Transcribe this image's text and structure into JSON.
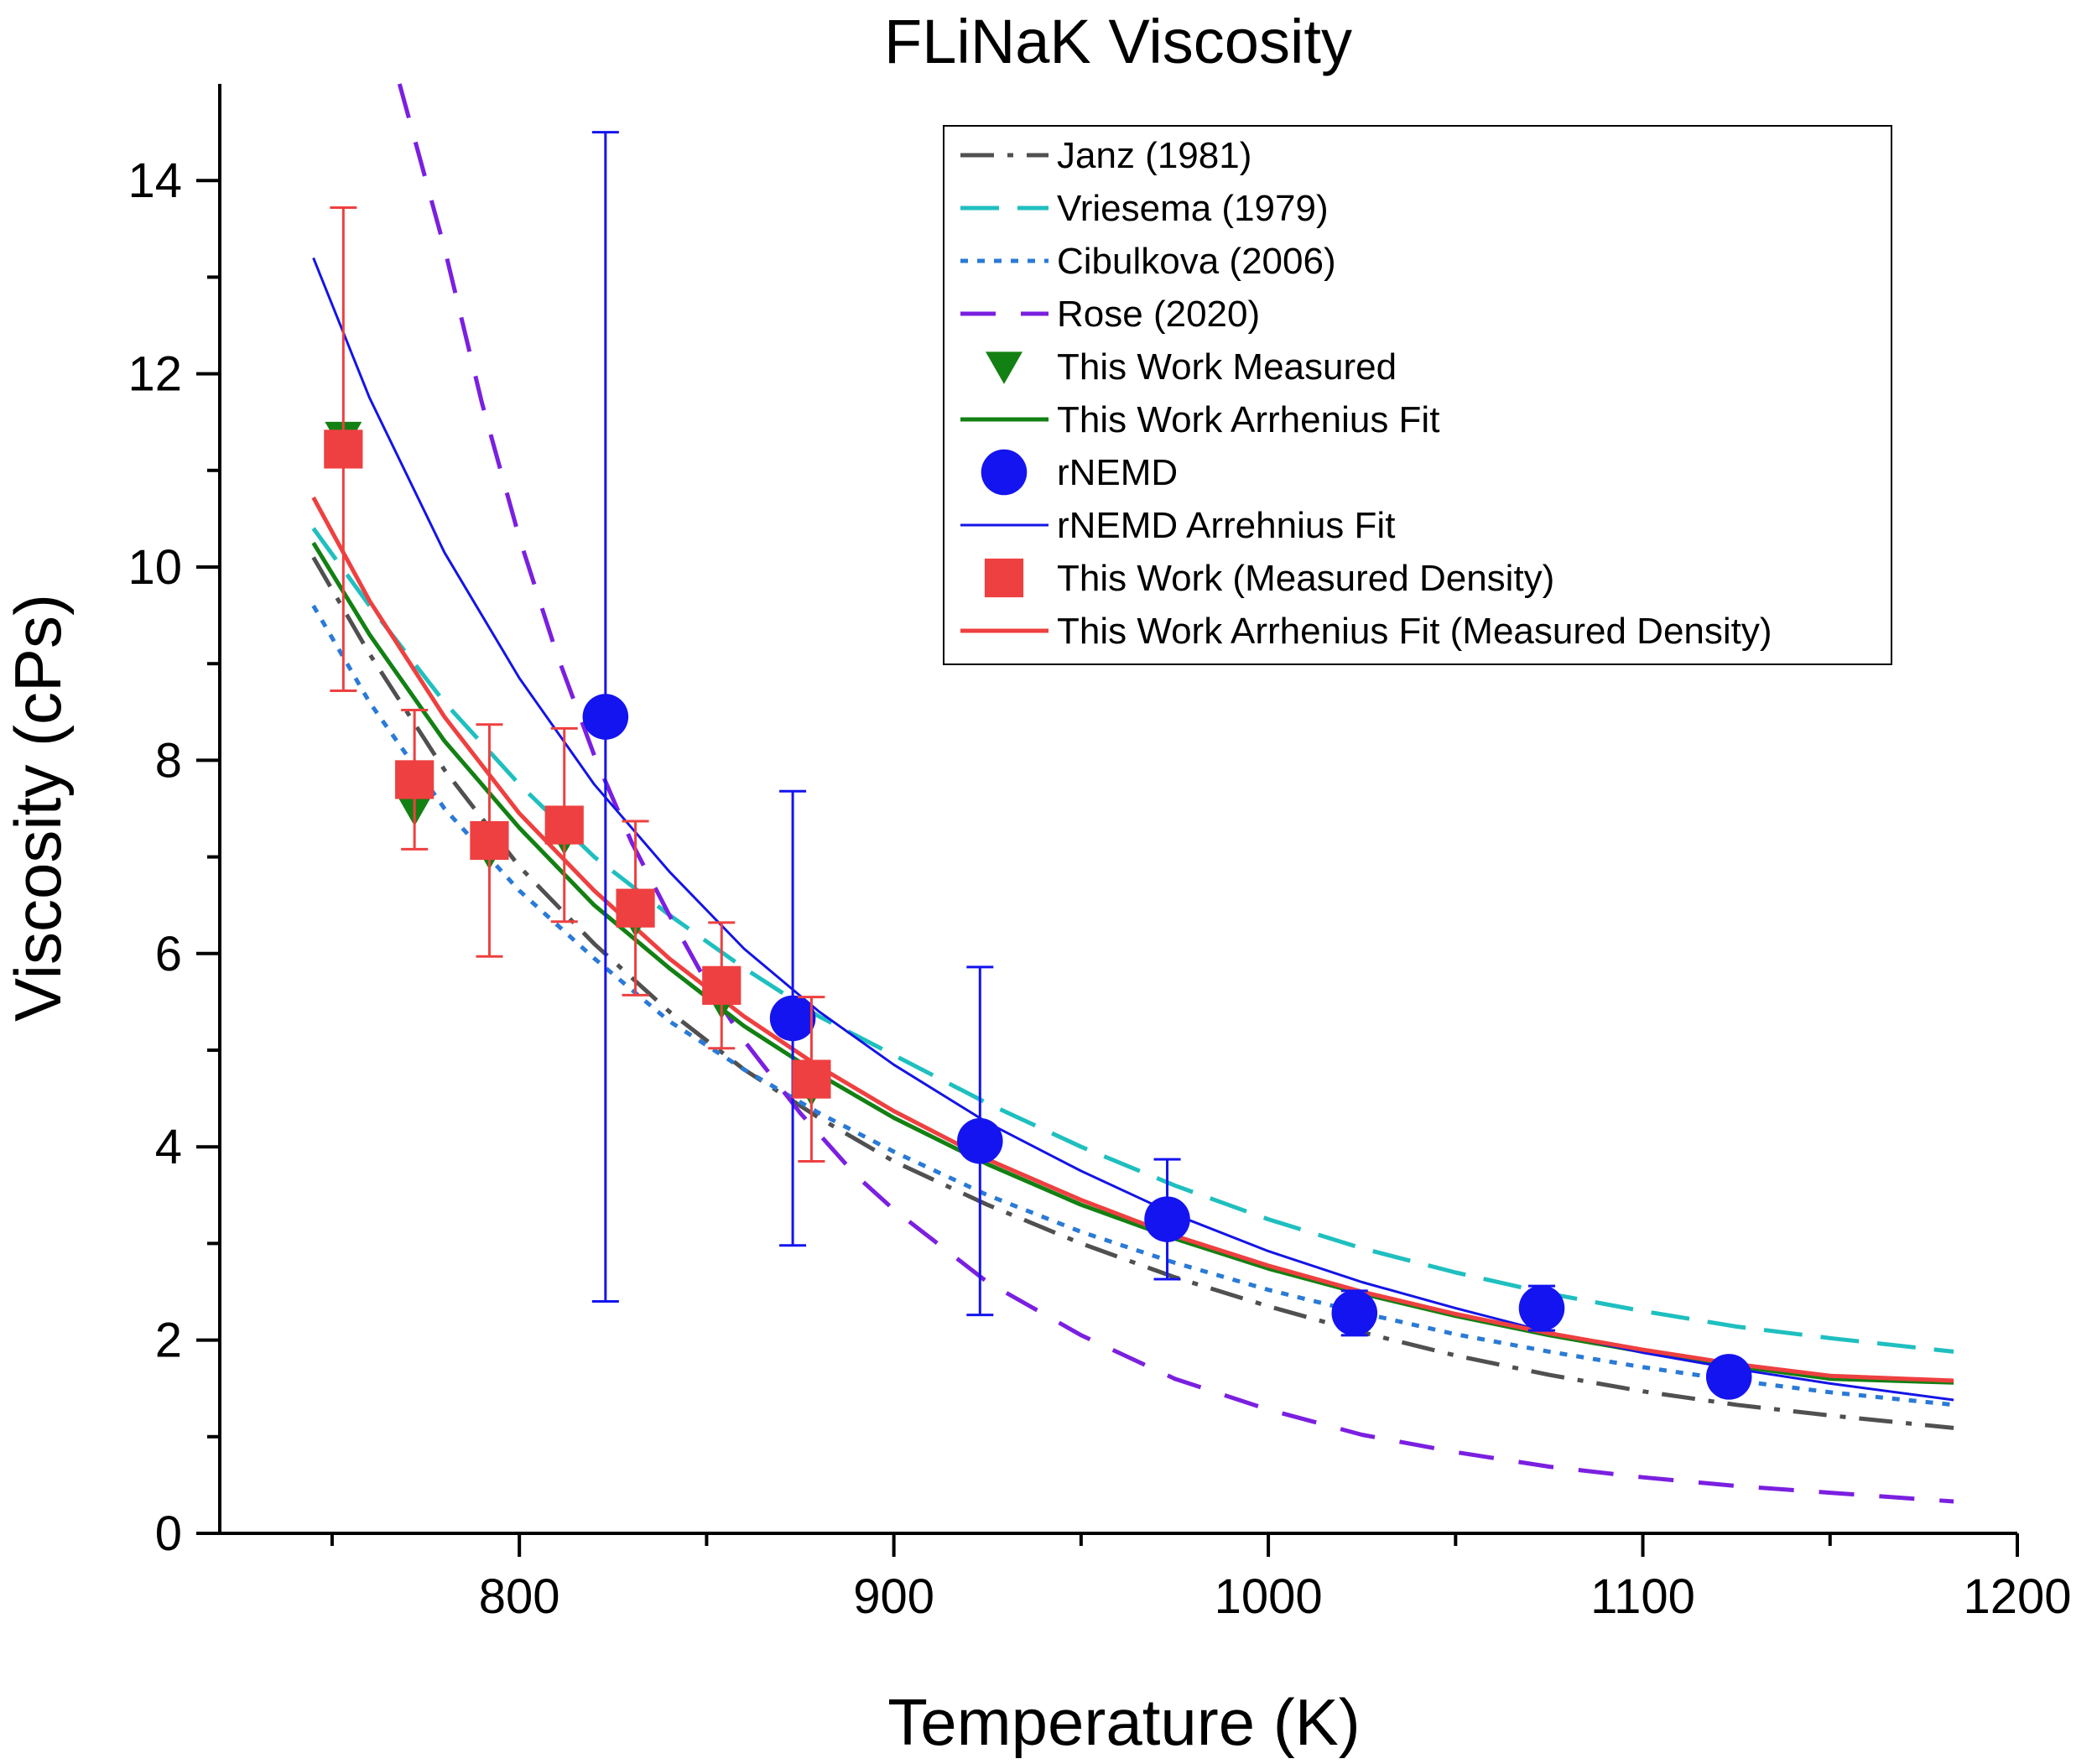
{
  "chart_data": {
    "type": "scatter",
    "title": "FLiNaK Viscosity",
    "xlabel": "Temperature (K)",
    "ylabel": "Viscosity (cPs)",
    "xlim": [
      720,
      1200
    ],
    "ylim": [
      0,
      15
    ],
    "xticks": [
      800,
      900,
      1000,
      1100,
      1200
    ],
    "yticks": [
      0,
      2,
      4,
      6,
      8,
      10,
      12,
      14
    ],
    "grid": false,
    "legend_position": "top-right",
    "series": [
      {
        "name": "Janz (1981)",
        "kind": "line",
        "color": "#505050",
        "dash": "dashdot",
        "x": [
          745,
          760,
          780,
          800,
          820,
          840,
          860,
          880,
          900,
          925,
          950,
          975,
          1000,
          1025,
          1050,
          1075,
          1100,
          1125,
          1150,
          1183
        ],
        "y": [
          10.1,
          9.1,
          7.9,
          6.9,
          6.1,
          5.4,
          4.8,
          4.3,
          3.85,
          3.4,
          3.0,
          2.65,
          2.35,
          2.08,
          1.84,
          1.64,
          1.47,
          1.33,
          1.22,
          1.09
        ]
      },
      {
        "name": "Vriesema (1979)",
        "kind": "line",
        "color": "#1fbfbf",
        "dash": "dash",
        "x": [
          745,
          760,
          780,
          800,
          820,
          840,
          860,
          880,
          900,
          925,
          950,
          975,
          1000,
          1025,
          1050,
          1075,
          1100,
          1125,
          1150,
          1183
        ],
        "y": [
          10.4,
          9.6,
          8.6,
          7.75,
          7.0,
          6.4,
          5.85,
          5.35,
          4.95,
          4.45,
          4.0,
          3.6,
          3.25,
          2.95,
          2.7,
          2.48,
          2.3,
          2.14,
          2.02,
          1.88
        ]
      },
      {
        "name": "Cibulkova (2006)",
        "kind": "line",
        "color": "#2a7ad6",
        "dash": "dot",
        "x": [
          745,
          760,
          780,
          800,
          820,
          840,
          860,
          880,
          900,
          925,
          950,
          975,
          1000,
          1025,
          1050,
          1075,
          1100,
          1125,
          1150,
          1183
        ],
        "y": [
          9.6,
          8.6,
          7.5,
          6.65,
          5.95,
          5.3,
          4.8,
          4.35,
          3.95,
          3.5,
          3.12,
          2.8,
          2.52,
          2.28,
          2.06,
          1.88,
          1.72,
          1.58,
          1.46,
          1.33
        ]
      },
      {
        "name": "Rose (2020)",
        "kind": "line",
        "color": "#7b1fe0",
        "dash": "longdash",
        "x": [
          768,
          780,
          790,
          800,
          810,
          820,
          830,
          840,
          850,
          860,
          875,
          890,
          900,
          925,
          950,
          975,
          1000,
          1025,
          1050,
          1075,
          1100,
          1125,
          1150,
          1183
        ],
        "y": [
          15.0,
          13.3,
          11.7,
          10.3,
          9.1,
          8.05,
          7.15,
          6.4,
          5.7,
          5.1,
          4.35,
          3.7,
          3.35,
          2.6,
          2.05,
          1.6,
          1.28,
          1.02,
          0.84,
          0.69,
          0.58,
          0.49,
          0.42,
          0.33
        ]
      },
      {
        "name": "This Work Measured",
        "kind": "marker",
        "marker": "triangle-down",
        "color": "#138013",
        "x": [
          753,
          772,
          792,
          812,
          831,
          854,
          878
        ],
        "y": [
          11.35,
          7.5,
          7.05,
          7.2,
          6.35,
          5.5,
          4.6
        ]
      },
      {
        "name": "This Work Arrhenius Fit",
        "kind": "line",
        "color": "#138013",
        "dash": "solid",
        "x": [
          745,
          760,
          780,
          800,
          820,
          840,
          860,
          880,
          900,
          925,
          950,
          975,
          1000,
          1025,
          1050,
          1075,
          1100,
          1125,
          1150,
          1183
        ],
        "y": [
          10.25,
          9.3,
          8.2,
          7.3,
          6.5,
          5.85,
          5.25,
          4.75,
          4.3,
          3.82,
          3.4,
          3.05,
          2.74,
          2.48,
          2.25,
          2.05,
          1.88,
          1.73,
          1.6,
          1.56
        ]
      },
      {
        "name": "rNEMD",
        "kind": "marker",
        "marker": "circle",
        "color": "#1414f0",
        "x": [
          823,
          873,
          923,
          973,
          1023,
          1073,
          1123
        ],
        "y": [
          8.45,
          5.33,
          4.06,
          3.25,
          2.28,
          2.33,
          1.62
        ],
        "error": [
          6.05,
          2.35,
          1.8,
          0.62,
          0.23,
          0.23,
          0.16
        ]
      },
      {
        "name": "rNEMD Arrehnius Fit",
        "kind": "line",
        "color": "#1414e6",
        "dash": "solid",
        "x": [
          745,
          760,
          780,
          800,
          820,
          840,
          860,
          880,
          900,
          925,
          950,
          975,
          1000,
          1025,
          1050,
          1075,
          1100,
          1125,
          1150,
          1183
        ],
        "y": [
          13.2,
          11.75,
          10.15,
          8.85,
          7.75,
          6.85,
          6.05,
          5.4,
          4.85,
          4.25,
          3.75,
          3.3,
          2.92,
          2.6,
          2.33,
          2.08,
          1.87,
          1.7,
          1.55,
          1.38
        ]
      },
      {
        "name": "This Work (Measured Density)",
        "kind": "marker",
        "marker": "square",
        "color": "#ee4040",
        "x": [
          753,
          772,
          792,
          812,
          831,
          854,
          878
        ],
        "y": [
          11.22,
          7.8,
          7.17,
          7.33,
          6.47,
          5.67,
          4.7
        ],
        "error": [
          2.5,
          0.72,
          1.2,
          1.0,
          0.9,
          0.65,
          0.85
        ]
      },
      {
        "name": "This Work Arrhenius Fit (Measured Density)",
        "kind": "line",
        "color": "#ee4040",
        "dash": "solid",
        "x": [
          745,
          760,
          780,
          800,
          820,
          840,
          860,
          880,
          900,
          925,
          950,
          975,
          1000,
          1025,
          1050,
          1075,
          1100,
          1125,
          1150,
          1183
        ],
        "y": [
          10.72,
          9.65,
          8.45,
          7.45,
          6.65,
          5.95,
          5.35,
          4.83,
          4.37,
          3.87,
          3.45,
          3.08,
          2.77,
          2.5,
          2.27,
          2.07,
          1.9,
          1.75,
          1.63,
          1.58
        ]
      }
    ]
  }
}
